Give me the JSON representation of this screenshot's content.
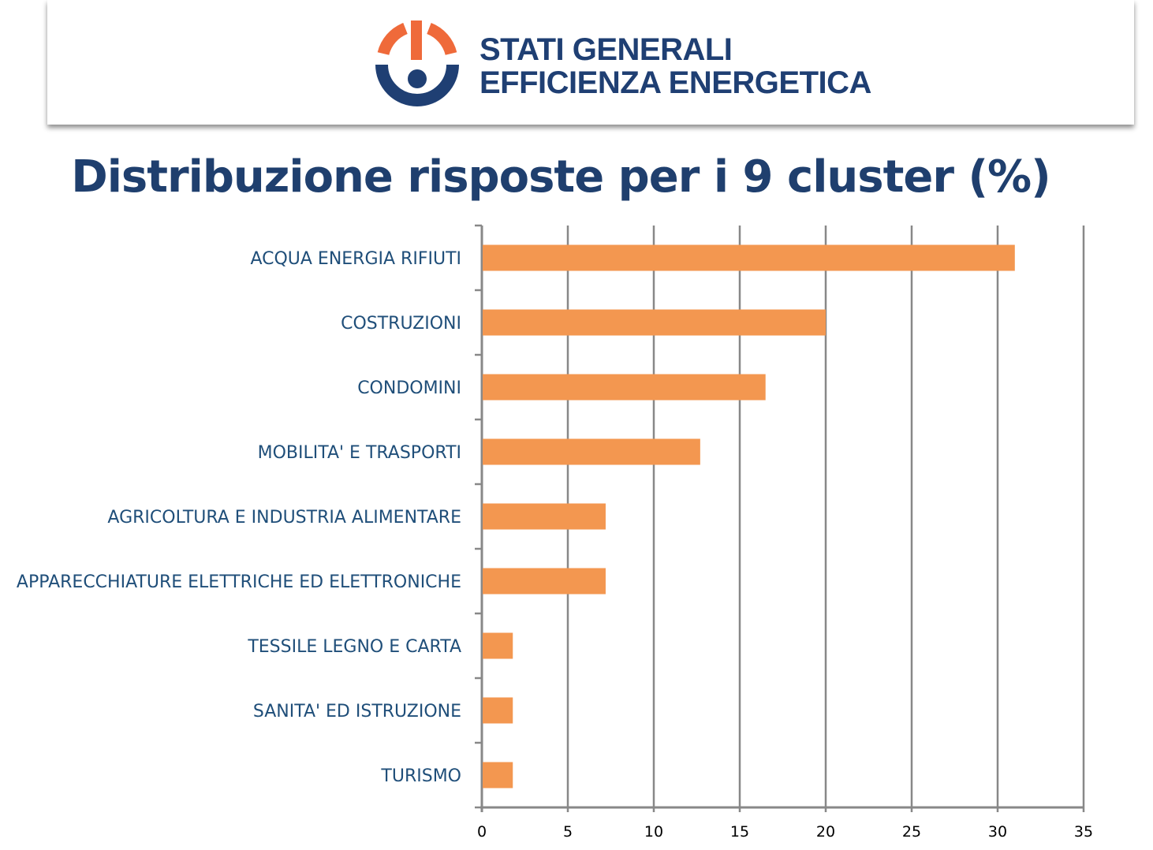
{
  "header": {
    "brand_line1": "STATI GENERALI",
    "brand_line2": "EFFICIENZA ENERGETICA",
    "logo_colors": {
      "orange": "#ef6a3a",
      "blue": "#1f3f73"
    }
  },
  "chart_data": {
    "type": "bar",
    "orientation": "horizontal",
    "title": "Distribuzione risposte per i 9 cluster (%)",
    "categories": [
      "ACQUA ENERGIA RIFIUTI",
      "COSTRUZIONI",
      "CONDOMINI",
      "MOBILITA' E TRASPORTI",
      "AGRICOLTURA E INDUSTRIA ALIMENTARE",
      "APPARECCHIATURE ELETTRICHE ED ELETTRONICHE",
      "TESSILE LEGNO E CARTA",
      "SANITA' ED ISTRUZIONE",
      "TURISMO"
    ],
    "values": [
      31,
      20,
      16.5,
      12.7,
      7.2,
      7.2,
      1.8,
      1.8,
      1.8
    ],
    "xlim": [
      0,
      35
    ],
    "xticks": [
      "0",
      "5",
      "10",
      "15",
      "20",
      "25",
      "30",
      "35"
    ],
    "grid": "vertical",
    "bar_color": "#f39750",
    "label_color": "#1f4e79"
  }
}
